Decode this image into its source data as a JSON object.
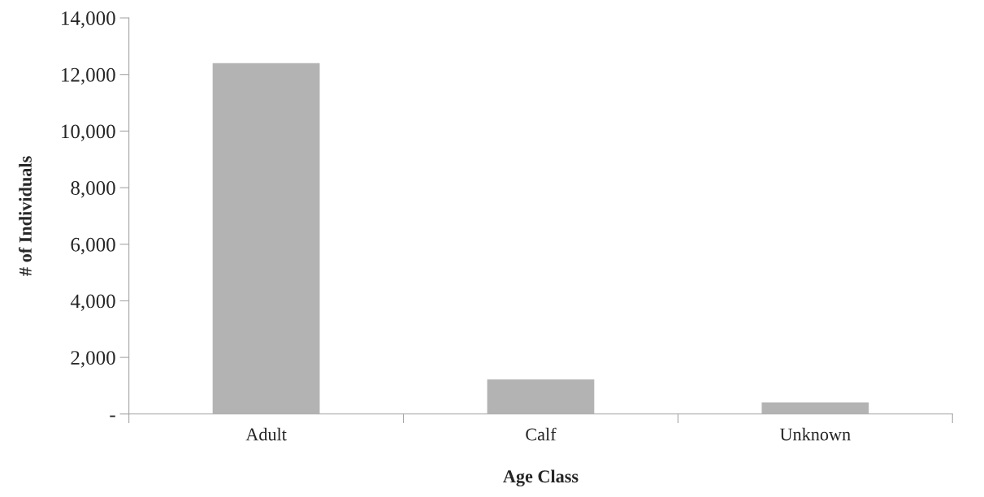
{
  "chart_data": {
    "type": "bar",
    "xlabel": "Age Class",
    "ylabel": "# of Individuals",
    "categories": [
      "Adult",
      "Calf",
      "Unknown"
    ],
    "values": [
      12400,
      1220,
      410
    ],
    "color": "#b3b3b3",
    "ylim": [
      0,
      14000
    ],
    "yticks": [
      {
        "value": 0,
        "label": "-"
      },
      {
        "value": 2000,
        "label": "2,000"
      },
      {
        "value": 4000,
        "label": "4,000"
      },
      {
        "value": 6000,
        "label": "6,000"
      },
      {
        "value": 8000,
        "label": "8,000"
      },
      {
        "value": 10000,
        "label": "10,000"
      },
      {
        "value": 12000,
        "label": "12,000"
      },
      {
        "value": 14000,
        "label": "14,000"
      }
    ],
    "grid": false
  }
}
